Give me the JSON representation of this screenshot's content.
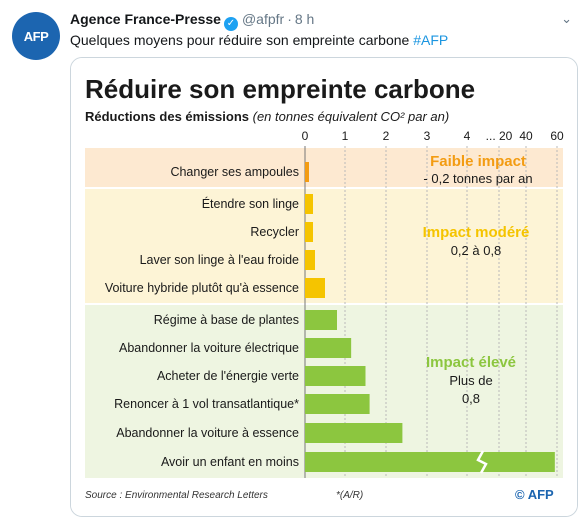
{
  "tweet": {
    "avatar_text": "AFP",
    "author_name": "Agence France-Presse",
    "verified_glyph": "✓",
    "handle": "@afpfr",
    "separator": "·",
    "time": "8 h",
    "text": "Quelques moyens pour réduire son empreinte carbone ",
    "hashtag": "#AFP",
    "menu_icon": "chevron-down-icon"
  },
  "chart_data": {
    "type": "bar",
    "orientation": "horizontal",
    "title": "Réduire son empreinte carbone",
    "subtitle": "Réductions des émissions",
    "subtitle_units": "(en tonnes équivalent CO² par an)",
    "ticks": [
      "0",
      "1",
      "2",
      "3",
      "4",
      "... 20",
      "40",
      "60"
    ],
    "tick_values": [
      0,
      1,
      2,
      3,
      4,
      20,
      40,
      60
    ],
    "categories": [
      "Changer ses ampoules",
      "Étendre son linge",
      "Recycler",
      "Laver son linge à l'eau froide",
      "Voiture hybride plutôt qu'à essence",
      "Régime à base de plantes",
      "Abandonner la voiture électrique",
      "Acheter de l'énergie verte",
      "Renoncer à 1 vol transatlantique*",
      "Abandonner la voiture à essence",
      "Avoir un enfant en moins"
    ],
    "values": [
      0.1,
      0.2,
      0.2,
      0.25,
      0.5,
      0.8,
      1.15,
      1.5,
      1.6,
      2.4,
      58.6
    ],
    "groups": [
      {
        "label": "Faible impact",
        "desc1": "- 0,2 tonnes par an",
        "desc2": "",
        "color": "#f39c12"
      },
      {
        "label": "Impact modéré",
        "desc1": "0,2 à 0,8",
        "desc2": "",
        "color": "#f5c400"
      },
      {
        "label": "Impact élevé",
        "desc1": "Plus de",
        "desc2": "0,8",
        "color": "#8cc63f"
      }
    ],
    "colors": {
      "low_bar": "#f39c12",
      "moderate_bar": "#f5c400",
      "high_bar": "#8cc63f",
      "low_bg": "#fde9d1",
      "moderate_bg": "#fdf4d6",
      "high_bg": "#eef5e1"
    },
    "source": "Source : Environmental Research Letters",
    "footnote": "*(A/R)",
    "credit": "© AFP"
  }
}
